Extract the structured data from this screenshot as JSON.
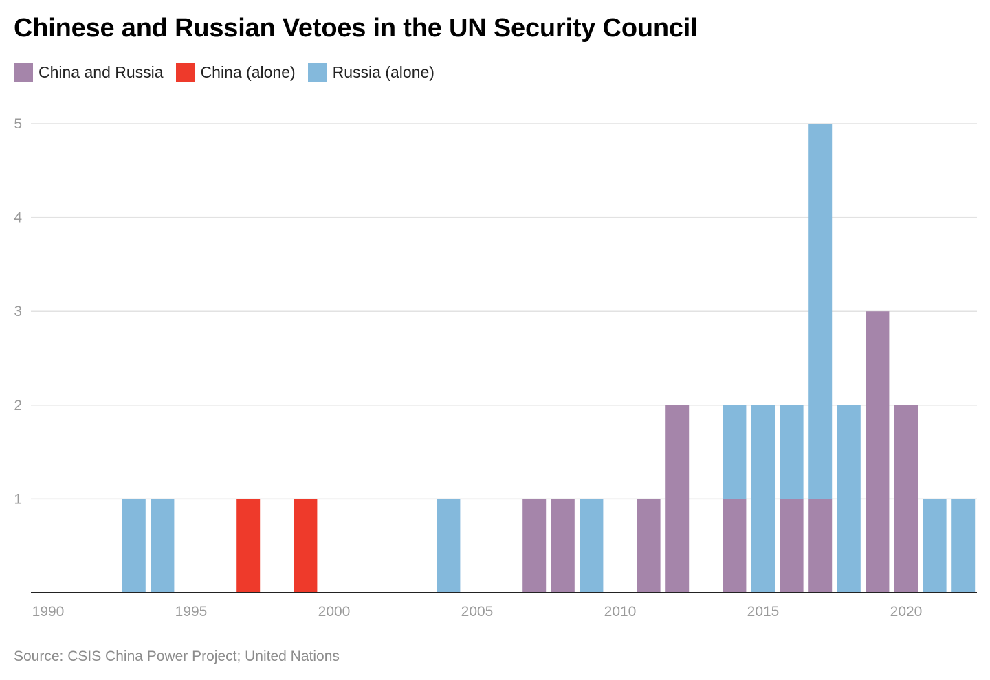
{
  "header": {
    "title": "Chinese and Russian Vetoes in the UN Security Council"
  },
  "legend": {
    "items": [
      {
        "label": "China and Russia",
        "color": "#a585aa"
      },
      {
        "label": "China (alone)",
        "color": "#ee3a2b"
      },
      {
        "label": "Russia (alone)",
        "color": "#84b9dc"
      }
    ]
  },
  "footer": {
    "source": "Source: CSIS China Power Project; United Nations"
  },
  "chart_data": {
    "type": "bar",
    "stacked": true,
    "title": "Chinese and Russian Vetoes in the UN Security Council",
    "xlabel": "",
    "ylabel": "",
    "xlim": [
      1990,
      2022
    ],
    "ylim": [
      0,
      5
    ],
    "x_ticks": [
      1990,
      1995,
      2000,
      2005,
      2010,
      2015,
      2020
    ],
    "y_ticks": [
      1,
      2,
      3,
      4,
      5
    ],
    "grid": true,
    "legend_position": "top-left",
    "categories": [
      1993,
      1994,
      1997,
      1999,
      2004,
      2007,
      2008,
      2009,
      2011,
      2012,
      2014,
      2015,
      2016,
      2017,
      2018,
      2019,
      2020,
      2021,
      2022
    ],
    "series": [
      {
        "name": "China and Russia",
        "color": "#a585aa",
        "values": [
          0,
          0,
          0,
          0,
          0,
          1,
          1,
          0,
          1,
          2,
          1,
          0,
          1,
          1,
          0,
          3,
          2,
          0,
          0
        ]
      },
      {
        "name": "China (alone)",
        "color": "#ee3a2b",
        "values": [
          0,
          0,
          1,
          1,
          0,
          0,
          0,
          0,
          0,
          0,
          0,
          0,
          0,
          0,
          0,
          0,
          0,
          0,
          0
        ]
      },
      {
        "name": "Russia (alone)",
        "color": "#84b9dc",
        "values": [
          1,
          1,
          0,
          0,
          1,
          0,
          0,
          1,
          0,
          0,
          1,
          2,
          1,
          4,
          2,
          0,
          0,
          1,
          1
        ]
      }
    ]
  }
}
